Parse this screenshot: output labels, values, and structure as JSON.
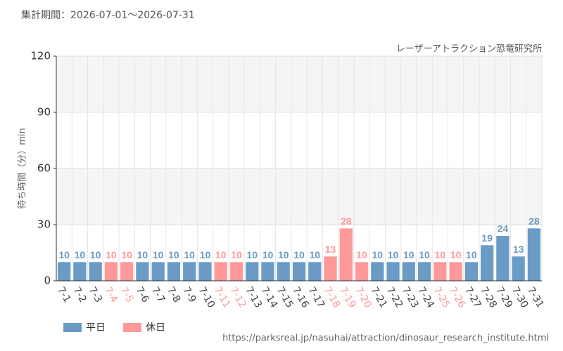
{
  "chart_data": {
    "type": "bar",
    "title": "集計期間：2026-07-01～2026-07-31",
    "subtitle": "レーザーアトラクション恐竜研究所",
    "y_label": "待ち時間（分）min",
    "source": "https://parksreal.jp/nasuhai/attraction/dinosaur_research_institute.html",
    "categories": [
      "7-1",
      "7-2",
      "7-3",
      "7-4",
      "7-5",
      "7-6",
      "7-7",
      "7-8",
      "7-9",
      "7-10",
      "7-11",
      "7-12",
      "7-13",
      "7-14",
      "7-15",
      "7-16",
      "7-17",
      "7-18",
      "7-19",
      "7-20",
      "7-21",
      "7-22",
      "7-23",
      "7-24",
      "7-25",
      "7-26",
      "7-27",
      "7-28",
      "7-29",
      "7-30",
      "7-31"
    ],
    "series": [
      {
        "name": "平日",
        "color": "#6a9bc5",
        "values": [
          10,
          10,
          10,
          null,
          null,
          10,
          10,
          10,
          10,
          10,
          null,
          null,
          10,
          10,
          10,
          10,
          10,
          null,
          null,
          null,
          10,
          10,
          10,
          10,
          null,
          null,
          10,
          19,
          24,
          13,
          28
        ]
      },
      {
        "name": "休日",
        "color": "#ff9999",
        "values": [
          null,
          null,
          null,
          10,
          10,
          null,
          null,
          null,
          null,
          null,
          10,
          10,
          null,
          null,
          null,
          null,
          null,
          13,
          28,
          10,
          null,
          null,
          null,
          null,
          10,
          10,
          null,
          null,
          null,
          null,
          null
        ]
      }
    ],
    "ylim": [
      0,
      120
    ],
    "yticks": [
      0,
      30,
      60,
      90,
      120
    ],
    "grid": true
  }
}
